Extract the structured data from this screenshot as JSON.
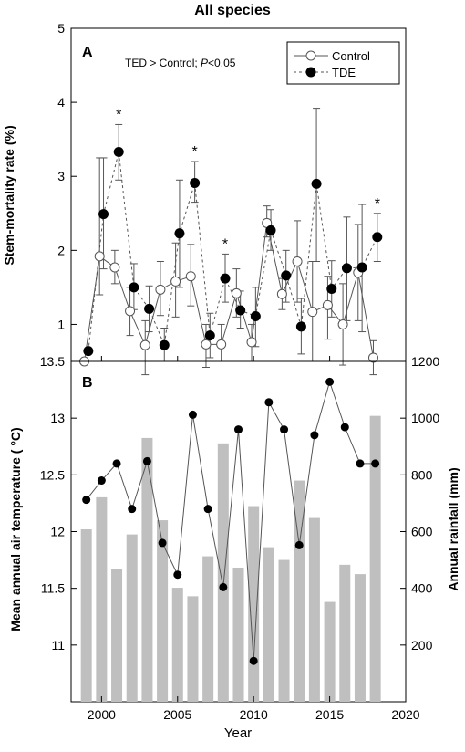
{
  "figure_title": "All species",
  "x_axis": {
    "label": "Year",
    "range": [
      1998,
      2020
    ],
    "ticks": [
      2000,
      2005,
      2010,
      2015,
      2020
    ],
    "tick_labels": [
      "2000",
      "2005",
      "2010",
      "2015",
      "2020"
    ]
  },
  "panel_a": {
    "letter": "A",
    "annotation_prefix": "TED > Control; ",
    "annotation_p": "P",
    "annotation_suffix": "<0.05",
    "legend": [
      "Control",
      "TDE"
    ],
    "legend_position": "top-right",
    "significance_marker": "*"
  },
  "panel_b": {
    "letter": "B"
  },
  "chart_data": [
    {
      "type": "line",
      "panel": "A",
      "ylabel": "Stem-mortality rate (%)",
      "ylim": [
        0.5,
        5
      ],
      "y_ticks": [
        1,
        2,
        3,
        4,
        5
      ],
      "y_tick_labels": [
        "1",
        "2",
        "3",
        "4",
        "5"
      ],
      "grid": false,
      "x": [
        1999,
        2000,
        2001,
        2002,
        2003,
        2004,
        2005,
        2006,
        2007,
        2008,
        2009,
        2010,
        2011,
        2012,
        2013,
        2014,
        2015,
        2016,
        2017,
        2018
      ],
      "series": [
        {
          "name": "Control",
          "marker": "open-circle",
          "line_style": "solid",
          "values": [
            0.5,
            1.92,
            1.77,
            1.18,
            0.72,
            1.47,
            1.58,
            1.65,
            0.73,
            0.73,
            1.42,
            0.76,
            2.37,
            1.41,
            1.85,
            1.17,
            1.26,
            1.0,
            1.7,
            0.55
          ],
          "error_low": [
            null,
            1.4,
            1.55,
            0.85,
            0.32,
            1.12,
            1.1,
            1.25,
            0.42,
            0.5,
            1.1,
            0.5,
            2.18,
            1.2,
            1.3,
            0.5,
            0.8,
            0.45,
            1.05,
            0.32
          ],
          "error_high": [
            null,
            3.25,
            2.0,
            1.5,
            1.05,
            1.85,
            2.1,
            2.08,
            1.0,
            1.0,
            1.75,
            1.0,
            2.6,
            1.62,
            2.4,
            1.85,
            1.65,
            1.55,
            2.35,
            0.78
          ]
        },
        {
          "name": "TDE",
          "marker": "filled-circle",
          "line_style": "dashed",
          "values": [
            0.64,
            2.49,
            3.33,
            1.5,
            1.21,
            0.72,
            2.23,
            2.91,
            0.85,
            1.62,
            1.19,
            1.11,
            2.27,
            1.66,
            0.97,
            2.9,
            1.48,
            1.76,
            1.77,
            2.18
          ],
          "error_low": [
            null,
            1.75,
            2.95,
            1.2,
            0.9,
            0.5,
            1.5,
            2.65,
            0.55,
            1.3,
            0.95,
            0.7,
            2.0,
            1.3,
            0.6,
            1.85,
            1.1,
            1.05,
            0.9,
            1.85
          ],
          "error_high": [
            null,
            3.25,
            3.7,
            1.82,
            1.52,
            0.95,
            2.95,
            3.2,
            1.15,
            1.95,
            1.45,
            1.5,
            2.55,
            2.0,
            1.35,
            3.92,
            1.86,
            2.45,
            2.62,
            2.5
          ]
        }
      ],
      "significant_years": [
        2001,
        2006,
        2008,
        2018
      ]
    },
    {
      "type": "bar",
      "panel": "B",
      "y2label": "Annual rainfall (mm)",
      "y2lim": [
        0,
        1200
      ],
      "y2_ticks": [
        200,
        400,
        600,
        800,
        1000,
        1200
      ],
      "y2_tick_labels": [
        "200",
        "400",
        "600",
        "800",
        "1000",
        "1200"
      ],
      "bar_color": "#bfbfbf",
      "x": [
        1999,
        2000,
        2001,
        2002,
        2003,
        2004,
        2005,
        2006,
        2007,
        2008,
        2009,
        2010,
        2011,
        2012,
        2013,
        2014,
        2015,
        2016,
        2017,
        2018
      ],
      "values": [
        608,
        721,
        467,
        590,
        930,
        640,
        402,
        372,
        513,
        911,
        473,
        690,
        545,
        500,
        780,
        648,
        352,
        483,
        450,
        1008
      ]
    },
    {
      "type": "line",
      "panel": "B",
      "ylabel": "Mean annual air temperature ( °C)",
      "ylim": [
        10.5,
        13.5
      ],
      "y_ticks": [
        11,
        11.5,
        12,
        12.5,
        13,
        13.5
      ],
      "y_tick_labels": [
        "11",
        "11.5",
        "12",
        "12.5",
        "13",
        "13.5"
      ],
      "x": [
        1999,
        2000,
        2001,
        2002,
        2003,
        2004,
        2005,
        2006,
        2007,
        2008,
        2009,
        2010,
        2011,
        2012,
        2013,
        2014,
        2015,
        2016,
        2017,
        2018
      ],
      "series": [
        {
          "marker": "filled-circle",
          "line_style": "solid",
          "values": [
            12.28,
            12.45,
            12.6,
            12.2,
            12.62,
            11.9,
            11.62,
            13.03,
            12.2,
            11.51,
            12.9,
            10.86,
            13.14,
            12.9,
            11.88,
            12.85,
            13.32,
            12.92,
            12.6,
            12.6
          ]
        }
      ]
    }
  ]
}
